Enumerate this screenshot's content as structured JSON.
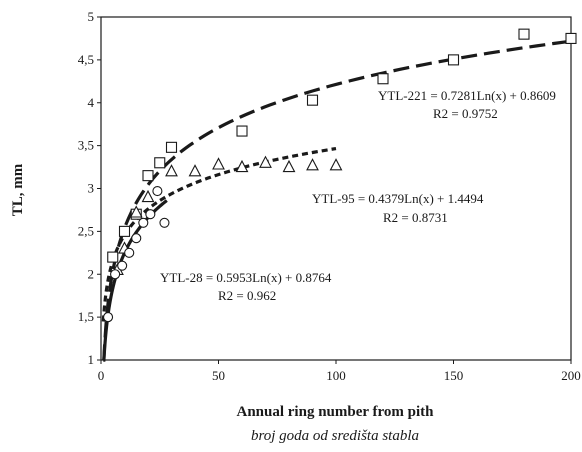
{
  "chart_data": {
    "type": "scatter",
    "xlabel": "Annual ring number from pith",
    "xlabel_sub": "broj goda od središta stabla",
    "ylabel": "TL, mm",
    "xlim": [
      0,
      200
    ],
    "ylim": [
      1,
      5
    ],
    "x_ticks": [
      "0",
      "50",
      "100",
      "150",
      "200"
    ],
    "y_ticks": [
      "1",
      "1,5",
      "2",
      "2,5",
      "3",
      "3,5",
      "4",
      "4,5",
      "5"
    ],
    "grid": false,
    "series": [
      {
        "name": "YTL-221",
        "marker": "square",
        "points": [
          [
            5,
            2.2
          ],
          [
            10,
            2.5
          ],
          [
            15,
            2.7
          ],
          [
            20,
            3.15
          ],
          [
            25,
            3.3
          ],
          [
            30,
            3.48
          ],
          [
            60,
            3.67
          ],
          [
            90,
            4.03
          ],
          [
            120,
            4.28
          ],
          [
            150,
            4.5
          ],
          [
            180,
            4.8
          ],
          [
            200,
            4.75
          ]
        ],
        "trend": {
          "a": 0.7281,
          "b": 0.8609,
          "x_range": [
            1,
            200
          ],
          "equation": "YTL-221 = 0.7281Ln(x) + 0.8609",
          "r2": "R2 = 0.9752",
          "style": "long-dash"
        }
      },
      {
        "name": "YTL-95",
        "marker": "triangle",
        "points": [
          [
            7,
            2.05
          ],
          [
            10,
            2.3
          ],
          [
            15,
            2.72
          ],
          [
            20,
            2.9
          ],
          [
            30,
            3.2
          ],
          [
            40,
            3.2
          ],
          [
            50,
            3.28
          ],
          [
            60,
            3.25
          ],
          [
            70,
            3.3
          ],
          [
            80,
            3.25
          ],
          [
            90,
            3.27
          ],
          [
            100,
            3.27
          ]
        ],
        "trend": {
          "a": 0.4379,
          "b": 1.4494,
          "x_range": [
            1,
            100
          ],
          "equation": "YTL-95 = 0.4379Ln(x) + 1.4494",
          "r2": "R2 = 0.8731",
          "style": "short-dash"
        }
      },
      {
        "name": "YTL-28",
        "marker": "circle",
        "points": [
          [
            3,
            1.5
          ],
          [
            6,
            2.0
          ],
          [
            9,
            2.1
          ],
          [
            12,
            2.25
          ],
          [
            15,
            2.42
          ],
          [
            18,
            2.6
          ],
          [
            21,
            2.7
          ],
          [
            24,
            2.97
          ],
          [
            27,
            2.6
          ]
        ],
        "trend": {
          "a": 0.5953,
          "b": 0.8764,
          "x_range": [
            1,
            28
          ],
          "equation": "YTL-28 = 0.5953Ln(x) + 0.8764",
          "r2": "R2 = 0.962",
          "style": "solid"
        }
      }
    ]
  }
}
